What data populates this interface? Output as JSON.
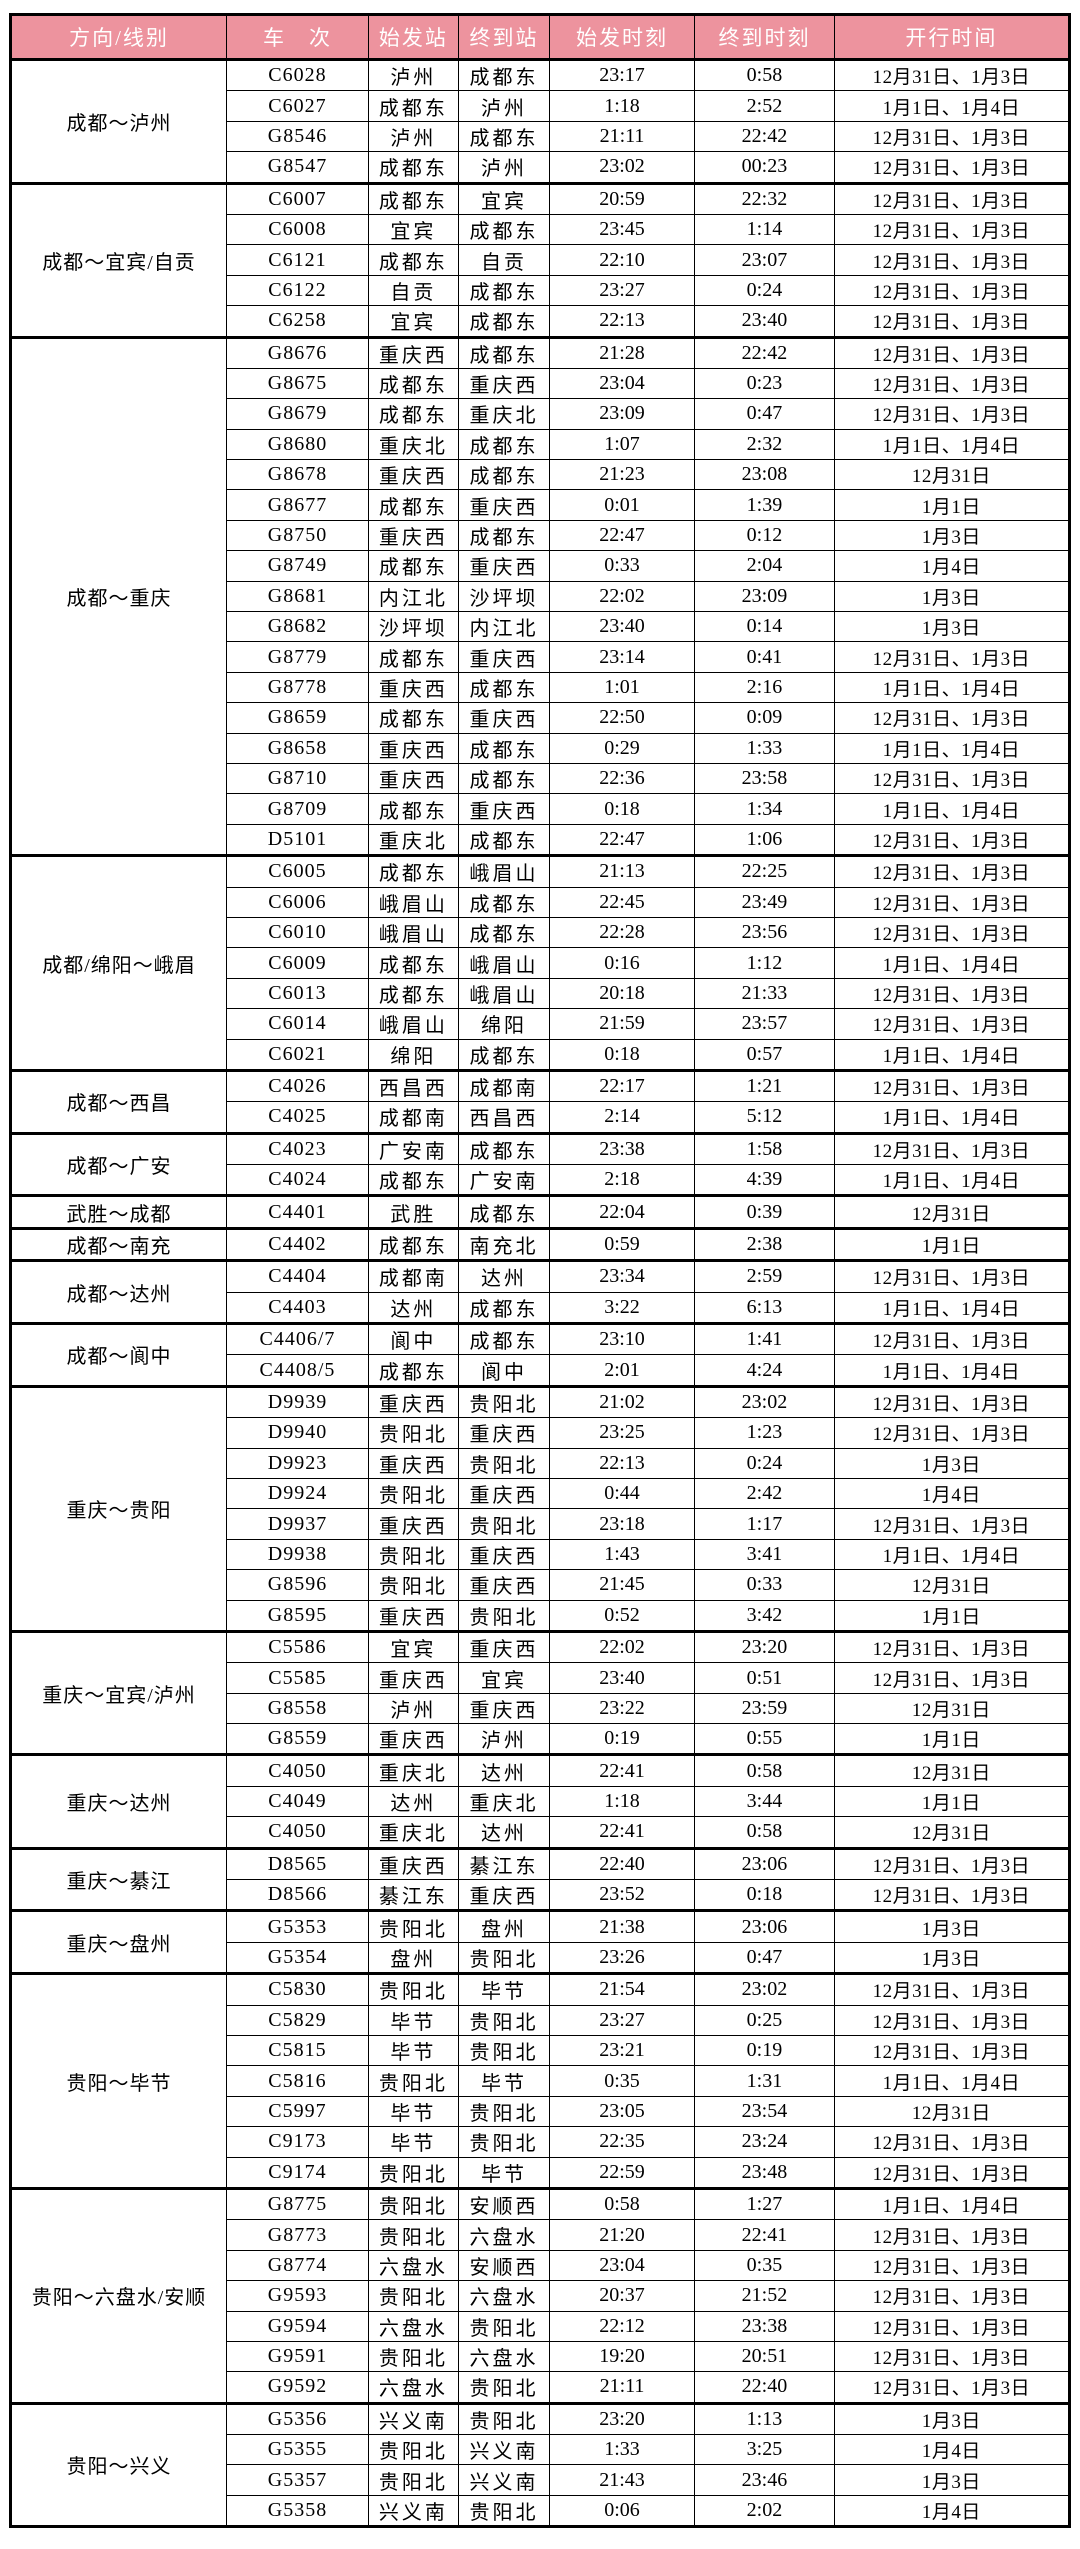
{
  "colors": {
    "header_bg": "#ED939E",
    "header_text": "#FFFFFF",
    "border": "#000000",
    "row_bg": "#FFFFFF"
  },
  "table": {
    "columns": [
      "方向/线别",
      "车　次",
      "始发站",
      "终到站",
      "始发时刻",
      "终到时刻",
      "开行时间"
    ],
    "groups": [
      {
        "direction": "成都～泸州",
        "rows": [
          {
            "train": "C6028",
            "from": "泸州",
            "to": "成都东",
            "dep": "23:17",
            "arr": "0:58",
            "dates": "12月31日、1月3日"
          },
          {
            "train": "C6027",
            "from": "成都东",
            "to": "泸州",
            "dep": "1:18",
            "arr": "2:52",
            "dates": "1月1日、1月4日"
          },
          {
            "train": "G8546",
            "from": "泸州",
            "to": "成都东",
            "dep": "21:11",
            "arr": "22:42",
            "dates": "12月31日、1月3日"
          },
          {
            "train": "G8547",
            "from": "成都东",
            "to": "泸州",
            "dep": "23:02",
            "arr": "00:23",
            "dates": "12月31日、1月3日"
          }
        ]
      },
      {
        "direction": "成都～宜宾/自贡",
        "rows": [
          {
            "train": "C6007",
            "from": "成都东",
            "to": "宜宾",
            "dep": "20:59",
            "arr": "22:32",
            "dates": "12月31日、1月3日"
          },
          {
            "train": "C6008",
            "from": "宜宾",
            "to": "成都东",
            "dep": "23:45",
            "arr": "1:14",
            "dates": "12月31日、1月3日"
          },
          {
            "train": "C6121",
            "from": "成都东",
            "to": "自贡",
            "dep": "22:10",
            "arr": "23:07",
            "dates": "12月31日、1月3日"
          },
          {
            "train": "C6122",
            "from": "自贡",
            "to": "成都东",
            "dep": "23:27",
            "arr": "0:24",
            "dates": "12月31日、1月3日"
          },
          {
            "train": "C6258",
            "from": "宜宾",
            "to": "成都东",
            "dep": "22:13",
            "arr": "23:40",
            "dates": "12月31日、1月3日"
          }
        ]
      },
      {
        "direction": "成都～重庆",
        "rows": [
          {
            "train": "G8676",
            "from": "重庆西",
            "to": "成都东",
            "dep": "21:28",
            "arr": "22:42",
            "dates": "12月31日、1月3日"
          },
          {
            "train": "G8675",
            "from": "成都东",
            "to": "重庆西",
            "dep": "23:04",
            "arr": "0:23",
            "dates": "12月31日、1月3日"
          },
          {
            "train": "G8679",
            "from": "成都东",
            "to": "重庆北",
            "dep": "23:09",
            "arr": "0:47",
            "dates": "12月31日、1月3日"
          },
          {
            "train": "G8680",
            "from": "重庆北",
            "to": "成都东",
            "dep": "1:07",
            "arr": "2:32",
            "dates": "1月1日、1月4日"
          },
          {
            "train": "G8678",
            "from": "重庆西",
            "to": "成都东",
            "dep": "21:23",
            "arr": "23:08",
            "dates": "12月31日"
          },
          {
            "train": "G8677",
            "from": "成都东",
            "to": "重庆西",
            "dep": "0:01",
            "arr": "1:39",
            "dates": "1月1日"
          },
          {
            "train": "G8750",
            "from": "重庆西",
            "to": "成都东",
            "dep": "22:47",
            "arr": "0:12",
            "dates": "1月3日"
          },
          {
            "train": "G8749",
            "from": "成都东",
            "to": "重庆西",
            "dep": "0:33",
            "arr": "2:04",
            "dates": "1月4日"
          },
          {
            "train": "G8681",
            "from": "内江北",
            "to": "沙坪坝",
            "dep": "22:02",
            "arr": "23:09",
            "dates": "1月3日"
          },
          {
            "train": "G8682",
            "from": "沙坪坝",
            "to": "内江北",
            "dep": "23:40",
            "arr": "0:14",
            "dates": "1月3日"
          },
          {
            "train": "G8779",
            "from": "成都东",
            "to": "重庆西",
            "dep": "23:14",
            "arr": "0:41",
            "dates": "12月31日、1月3日"
          },
          {
            "train": "G8778",
            "from": "重庆西",
            "to": "成都东",
            "dep": "1:01",
            "arr": "2:16",
            "dates": "1月1日、1月4日"
          },
          {
            "train": "G8659",
            "from": "成都东",
            "to": "重庆西",
            "dep": "22:50",
            "arr": "0:09",
            "dates": "12月31日、1月3日"
          },
          {
            "train": "G8658",
            "from": "重庆西",
            "to": "成都东",
            "dep": "0:29",
            "arr": "1:33",
            "dates": "1月1日、1月4日"
          },
          {
            "train": "G8710",
            "from": "重庆西",
            "to": "成都东",
            "dep": "22:36",
            "arr": "23:58",
            "dates": "12月31日、1月3日"
          },
          {
            "train": "G8709",
            "from": "成都东",
            "to": "重庆西",
            "dep": "0:18",
            "arr": "1:34",
            "dates": "1月1日、1月4日"
          },
          {
            "train": "D5101",
            "from": "重庆北",
            "to": "成都东",
            "dep": "22:47",
            "arr": "1:06",
            "dates": "12月31日、1月3日"
          }
        ]
      },
      {
        "direction": "成都/绵阳～峨眉",
        "rows": [
          {
            "train": "C6005",
            "from": "成都东",
            "to": "峨眉山",
            "dep": "21:13",
            "arr": "22:25",
            "dates": "12月31日、1月3日"
          },
          {
            "train": "C6006",
            "from": "峨眉山",
            "to": "成都东",
            "dep": "22:45",
            "arr": "23:49",
            "dates": "12月31日、1月3日"
          },
          {
            "train": "C6010",
            "from": "峨眉山",
            "to": "成都东",
            "dep": "22:28",
            "arr": "23:56",
            "dates": "12月31日、1月3日"
          },
          {
            "train": "C6009",
            "from": "成都东",
            "to": "峨眉山",
            "dep": "0:16",
            "arr": "1:12",
            "dates": "1月1日、1月4日"
          },
          {
            "train": "C6013",
            "from": "成都东",
            "to": "峨眉山",
            "dep": "20:18",
            "arr": "21:33",
            "dates": "12月31日、1月3日"
          },
          {
            "train": "C6014",
            "from": "峨眉山",
            "to": "绵阳",
            "dep": "21:59",
            "arr": "23:57",
            "dates": "12月31日、1月3日"
          },
          {
            "train": "C6021",
            "from": "绵阳",
            "to": "成都东",
            "dep": "0:18",
            "arr": "0:57",
            "dates": "1月1日、1月4日"
          }
        ]
      },
      {
        "direction": "成都～西昌",
        "rows": [
          {
            "train": "C4026",
            "from": "西昌西",
            "to": "成都南",
            "dep": "22:17",
            "arr": "1:21",
            "dates": "12月31日、1月3日"
          },
          {
            "train": "C4025",
            "from": "成都南",
            "to": "西昌西",
            "dep": "2:14",
            "arr": "5:12",
            "dates": "1月1日、1月4日"
          }
        ]
      },
      {
        "direction": "成都～广安",
        "rows": [
          {
            "train": "C4023",
            "from": "广安南",
            "to": "成都东",
            "dep": "23:38",
            "arr": "1:58",
            "dates": "12月31日、1月3日"
          },
          {
            "train": "C4024",
            "from": "成都东",
            "to": "广安南",
            "dep": "2:18",
            "arr": "4:39",
            "dates": "1月1日、1月4日"
          }
        ]
      },
      {
        "direction": "武胜～成都",
        "rows": [
          {
            "train": "C4401",
            "from": "武胜",
            "to": "成都东",
            "dep": "22:04",
            "arr": "0:39",
            "dates": "12月31日"
          }
        ]
      },
      {
        "direction": "成都～南充",
        "rows": [
          {
            "train": "C4402",
            "from": "成都东",
            "to": "南充北",
            "dep": "0:59",
            "arr": "2:38",
            "dates": "1月1日"
          }
        ]
      },
      {
        "direction": "成都～达州",
        "rows": [
          {
            "train": "C4404",
            "from": "成都南",
            "to": "达州",
            "dep": "23:34",
            "arr": "2:59",
            "dates": "12月31日、1月3日"
          },
          {
            "train": "C4403",
            "from": "达州",
            "to": "成都东",
            "dep": "3:22",
            "arr": "6:13",
            "dates": "1月1日、1月4日"
          }
        ]
      },
      {
        "direction": "成都～阆中",
        "rows": [
          {
            "train": "C4406/7",
            "from": "阆中",
            "to": "成都东",
            "dep": "23:10",
            "arr": "1:41",
            "dates": "12月31日、1月3日"
          },
          {
            "train": "C4408/5",
            "from": "成都东",
            "to": "阆中",
            "dep": "2:01",
            "arr": "4:24",
            "dates": "1月1日、1月4日"
          }
        ]
      },
      {
        "direction": "重庆～贵阳",
        "rows": [
          {
            "train": "D9939",
            "from": "重庆西",
            "to": "贵阳北",
            "dep": "21:02",
            "arr": "23:02",
            "dates": "12月31日、1月3日"
          },
          {
            "train": "D9940",
            "from": "贵阳北",
            "to": "重庆西",
            "dep": "23:25",
            "arr": "1:23",
            "dates": "12月31日、1月3日"
          },
          {
            "train": "D9923",
            "from": "重庆西",
            "to": "贵阳北",
            "dep": "22:13",
            "arr": "0:24",
            "dates": "1月3日"
          },
          {
            "train": "D9924",
            "from": "贵阳北",
            "to": "重庆西",
            "dep": "0:44",
            "arr": "2:42",
            "dates": "1月4日"
          },
          {
            "train": "D9937",
            "from": "重庆西",
            "to": "贵阳北",
            "dep": "23:18",
            "arr": "1:17",
            "dates": "12月31日、1月3日"
          },
          {
            "train": "D9938",
            "from": "贵阳北",
            "to": "重庆西",
            "dep": "1:43",
            "arr": "3:41",
            "dates": "1月1日、1月4日"
          },
          {
            "train": "G8596",
            "from": "贵阳北",
            "to": "重庆西",
            "dep": "21:45",
            "arr": "0:33",
            "dates": "12月31日"
          },
          {
            "train": "G8595",
            "from": "重庆西",
            "to": "贵阳北",
            "dep": "0:52",
            "arr": "3:42",
            "dates": "1月1日"
          }
        ]
      },
      {
        "direction": "重庆～宜宾/泸州",
        "rows": [
          {
            "train": "C5586",
            "from": "宜宾",
            "to": "重庆西",
            "dep": "22:02",
            "arr": "23:20",
            "dates": "12月31日、1月3日"
          },
          {
            "train": "C5585",
            "from": "重庆西",
            "to": "宜宾",
            "dep": "23:40",
            "arr": "0:51",
            "dates": "12月31日、1月3日"
          },
          {
            "train": "G8558",
            "from": "泸州",
            "to": "重庆西",
            "dep": "23:22",
            "arr": "23:59",
            "dates": "12月31日"
          },
          {
            "train": "G8559",
            "from": "重庆西",
            "to": "泸州",
            "dep": "0:19",
            "arr": "0:55",
            "dates": "1月1日"
          }
        ]
      },
      {
        "direction": "重庆～达州",
        "rows": [
          {
            "train": "C4050",
            "from": "重庆北",
            "to": "达州",
            "dep": "22:41",
            "arr": "0:58",
            "dates": "12月31日"
          },
          {
            "train": "C4049",
            "from": "达州",
            "to": "重庆北",
            "dep": "1:18",
            "arr": "3:44",
            "dates": "1月1日"
          },
          {
            "train": "C4050",
            "from": "重庆北",
            "to": "达州",
            "dep": "22:41",
            "arr": "0:58",
            "dates": "12月31日"
          }
        ]
      },
      {
        "direction": "重庆～綦江",
        "rows": [
          {
            "train": "D8565",
            "from": "重庆西",
            "to": "綦江东",
            "dep": "22:40",
            "arr": "23:06",
            "dates": "12月31日、1月3日"
          },
          {
            "train": "D8566",
            "from": "綦江东",
            "to": "重庆西",
            "dep": "23:52",
            "arr": "0:18",
            "dates": "12月31日、1月3日"
          }
        ]
      },
      {
        "direction": "重庆～盘州",
        "rows": [
          {
            "train": "G5353",
            "from": "贵阳北",
            "to": "盘州",
            "dep": "21:38",
            "arr": "23:06",
            "dates": "1月3日"
          },
          {
            "train": "G5354",
            "from": "盘州",
            "to": "贵阳北",
            "dep": "23:26",
            "arr": "0:47",
            "dates": "1月3日"
          }
        ]
      },
      {
        "direction": "贵阳～毕节",
        "rows": [
          {
            "train": "C5830",
            "from": "贵阳北",
            "to": "毕节",
            "dep": "21:54",
            "arr": "23:02",
            "dates": "12月31日、1月3日"
          },
          {
            "train": "C5829",
            "from": "毕节",
            "to": "贵阳北",
            "dep": "23:27",
            "arr": "0:25",
            "dates": "12月31日、1月3日"
          },
          {
            "train": "C5815",
            "from": "毕节",
            "to": "贵阳北",
            "dep": "23:21",
            "arr": "0:19",
            "dates": "12月31日、1月3日"
          },
          {
            "train": "C5816",
            "from": "贵阳北",
            "to": "毕节",
            "dep": "0:35",
            "arr": "1:31",
            "dates": "1月1日、1月4日"
          },
          {
            "train": "C5997",
            "from": "毕节",
            "to": "贵阳北",
            "dep": "23:05",
            "arr": "23:54",
            "dates": "12月31日"
          },
          {
            "train": "C9173",
            "from": "毕节",
            "to": "贵阳北",
            "dep": "22:35",
            "arr": "23:24",
            "dates": "12月31日、1月3日"
          },
          {
            "train": "C9174",
            "from": "贵阳北",
            "to": "毕节",
            "dep": "22:59",
            "arr": "23:48",
            "dates": "12月31日、1月3日"
          }
        ]
      },
      {
        "direction": "贵阳～六盘水/安顺",
        "rows": [
          {
            "train": "G8775",
            "from": "贵阳北",
            "to": "安顺西",
            "dep": "0:58",
            "arr": "1:27",
            "dates": "1月1日、1月4日"
          },
          {
            "train": "G8773",
            "from": "贵阳北",
            "to": "六盘水",
            "dep": "21:20",
            "arr": "22:41",
            "dates": "12月31日、1月3日"
          },
          {
            "train": "G8774",
            "from": "六盘水",
            "to": "安顺西",
            "dep": "23:04",
            "arr": "0:35",
            "dates": "12月31日、1月3日"
          },
          {
            "train": "G9593",
            "from": "贵阳北",
            "to": "六盘水",
            "dep": "20:37",
            "arr": "21:52",
            "dates": "12月31日、1月3日"
          },
          {
            "train": "G9594",
            "from": "六盘水",
            "to": "贵阳北",
            "dep": "22:12",
            "arr": "23:38",
            "dates": "12月31日、1月3日"
          },
          {
            "train": "G9591",
            "from": "贵阳北",
            "to": "六盘水",
            "dep": "19:20",
            "arr": "20:51",
            "dates": "12月31日、1月3日"
          },
          {
            "train": "G9592",
            "from": "六盘水",
            "to": "贵阳北",
            "dep": "21:11",
            "arr": "22:40",
            "dates": "12月31日、1月3日"
          }
        ]
      },
      {
        "direction": "贵阳～兴义",
        "rows": [
          {
            "train": "G5356",
            "from": "兴义南",
            "to": "贵阳北",
            "dep": "23:20",
            "arr": "1:13",
            "dates": "1月3日"
          },
          {
            "train": "G5355",
            "from": "贵阳北",
            "to": "兴义南",
            "dep": "1:33",
            "arr": "3:25",
            "dates": "1月4日"
          },
          {
            "train": "G5357",
            "from": "贵阳北",
            "to": "兴义南",
            "dep": "21:43",
            "arr": "23:46",
            "dates": "1月3日"
          },
          {
            "train": "G5358",
            "from": "兴义南",
            "to": "贵阳北",
            "dep": "0:06",
            "arr": "2:02",
            "dates": "1月4日"
          }
        ]
      }
    ]
  }
}
